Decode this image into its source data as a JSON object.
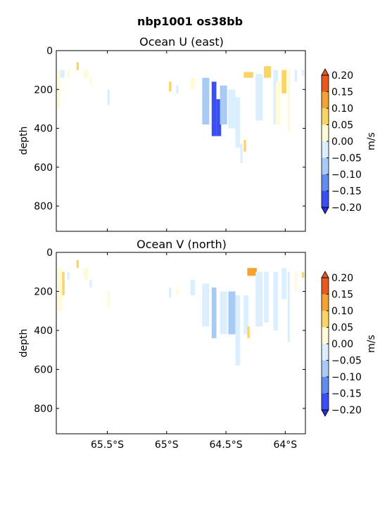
{
  "figure": {
    "title": "nbp1001 os38bb"
  },
  "colorbar": {
    "label": "m/s",
    "levels": [
      -0.2,
      -0.15,
      -0.1,
      -0.05,
      0.0,
      0.05,
      0.1,
      0.15,
      0.2
    ],
    "tick_labels": [
      "−0.20",
      "−0.15",
      "−0.10",
      "−0.05",
      "0.00",
      "0.05",
      "0.10",
      "0.15",
      "0.20"
    ],
    "colors": [
      "#3a4ff2",
      "#5f8ef0",
      "#a8cbf5",
      "#dcefff",
      "#fffbd7",
      "#fbd466",
      "#f3a233",
      "#e75a1e"
    ]
  },
  "chart_data": [
    {
      "type": "heatmap",
      "title": "Ocean U (east)",
      "xlabel": "",
      "ylabel": "depth",
      "xlim": [
        -65.93,
        -63.83
      ],
      "ylim": [
        930,
        0
      ],
      "x_ticks": [
        -65.5,
        -65.0,
        -64.5,
        -64.0
      ],
      "x_tick_labels": [
        "65.5°S",
        "65°S",
        "64.5°S",
        "64°S"
      ],
      "y_ticks": [
        0,
        200,
        400,
        600,
        800
      ],
      "y_tick_labels": [
        "0",
        "200",
        "400",
        "600",
        "800"
      ],
      "cells": [
        [
          -65.92,
          100,
          300,
          1,
          0.01
        ],
        [
          -65.9,
          100,
          140,
          2,
          -0.02
        ],
        [
          -65.84,
          100,
          140,
          1,
          0.03
        ],
        [
          -65.76,
          60,
          100,
          1,
          0.05
        ],
        [
          -65.7,
          100,
          140,
          2,
          0.04
        ],
        [
          -65.65,
          140,
          180,
          1,
          0.01
        ],
        [
          -65.5,
          200,
          280,
          1,
          -0.02
        ],
        [
          -64.98,
          160,
          210,
          1,
          0.06
        ],
        [
          -64.92,
          180,
          220,
          1,
          -0.03
        ],
        [
          -64.8,
          140,
          200,
          2,
          0.02
        ],
        [
          -64.7,
          140,
          380,
          3,
          -0.06
        ],
        [
          -64.62,
          160,
          440,
          2,
          -0.16
        ],
        [
          -64.58,
          250,
          440,
          2,
          -0.17
        ],
        [
          -64.55,
          180,
          380,
          3,
          -0.08
        ],
        [
          -64.48,
          200,
          400,
          3,
          -0.04
        ],
        [
          -64.42,
          240,
          500,
          2,
          -0.03
        ],
        [
          -64.38,
          480,
          580,
          1,
          -0.03
        ],
        [
          -64.35,
          460,
          520,
          1,
          0.07
        ],
        [
          -64.35,
          110,
          140,
          4,
          0.09
        ],
        [
          -64.25,
          120,
          360,
          3,
          -0.03
        ],
        [
          -64.18,
          80,
          140,
          3,
          0.08
        ],
        [
          -64.1,
          100,
          380,
          2,
          -0.02
        ],
        [
          -64.08,
          160,
          380,
          2,
          0.02
        ],
        [
          -64.03,
          100,
          220,
          2,
          0.06
        ],
        [
          -63.98,
          100,
          420,
          1,
          0.01
        ],
        [
          -63.92,
          100,
          160,
          1,
          -0.01
        ],
        [
          -63.86,
          100,
          130,
          1,
          -0.02
        ]
      ]
    },
    {
      "type": "heatmap",
      "title": "Ocean V (north)",
      "xlabel": "",
      "ylabel": "depth",
      "xlim": [
        -65.93,
        -63.83
      ],
      "ylim": [
        930,
        0
      ],
      "x_ticks": [
        -65.5,
        -65.0,
        -64.5,
        -64.0
      ],
      "x_tick_labels": [
        "65.5°S",
        "65°S",
        "64.5°S",
        "64°S"
      ],
      "y_ticks": [
        0,
        200,
        400,
        600,
        800
      ],
      "y_tick_labels": [
        "0",
        "200",
        "400",
        "600",
        "800"
      ],
      "cells": [
        [
          -65.92,
          80,
          300,
          2,
          0.02
        ],
        [
          -65.88,
          100,
          220,
          1,
          0.05
        ],
        [
          -65.84,
          100,
          140,
          1,
          -0.02
        ],
        [
          -65.76,
          40,
          80,
          1,
          0.07
        ],
        [
          -65.7,
          80,
          140,
          2,
          0.02
        ],
        [
          -65.65,
          140,
          180,
          1,
          -0.01
        ],
        [
          -65.5,
          200,
          280,
          1,
          0.02
        ],
        [
          -64.98,
          180,
          230,
          1,
          -0.03
        ],
        [
          -64.92,
          180,
          220,
          1,
          0.04
        ],
        [
          -64.8,
          140,
          220,
          2,
          -0.02
        ],
        [
          -64.7,
          160,
          380,
          3,
          -0.04
        ],
        [
          -64.62,
          180,
          440,
          2,
          -0.07
        ],
        [
          -64.55,
          200,
          420,
          3,
          -0.04
        ],
        [
          -64.48,
          200,
          420,
          3,
          -0.06
        ],
        [
          -64.42,
          220,
          580,
          2,
          -0.05
        ],
        [
          -64.35,
          220,
          420,
          2,
          -0.03
        ],
        [
          -64.32,
          380,
          440,
          1,
          0.07
        ],
        [
          -64.32,
          80,
          120,
          4,
          0.14
        ],
        [
          -64.25,
          100,
          380,
          3,
          -0.04
        ],
        [
          -64.18,
          100,
          360,
          2,
          -0.01
        ],
        [
          -64.1,
          100,
          400,
          2,
          -0.02
        ],
        [
          -64.03,
          80,
          240,
          2,
          -0.04
        ],
        [
          -63.98,
          100,
          460,
          1,
          -0.01
        ],
        [
          -63.92,
          100,
          200,
          1,
          0.01
        ],
        [
          -63.86,
          100,
          130,
          1,
          0.05
        ]
      ]
    }
  ]
}
